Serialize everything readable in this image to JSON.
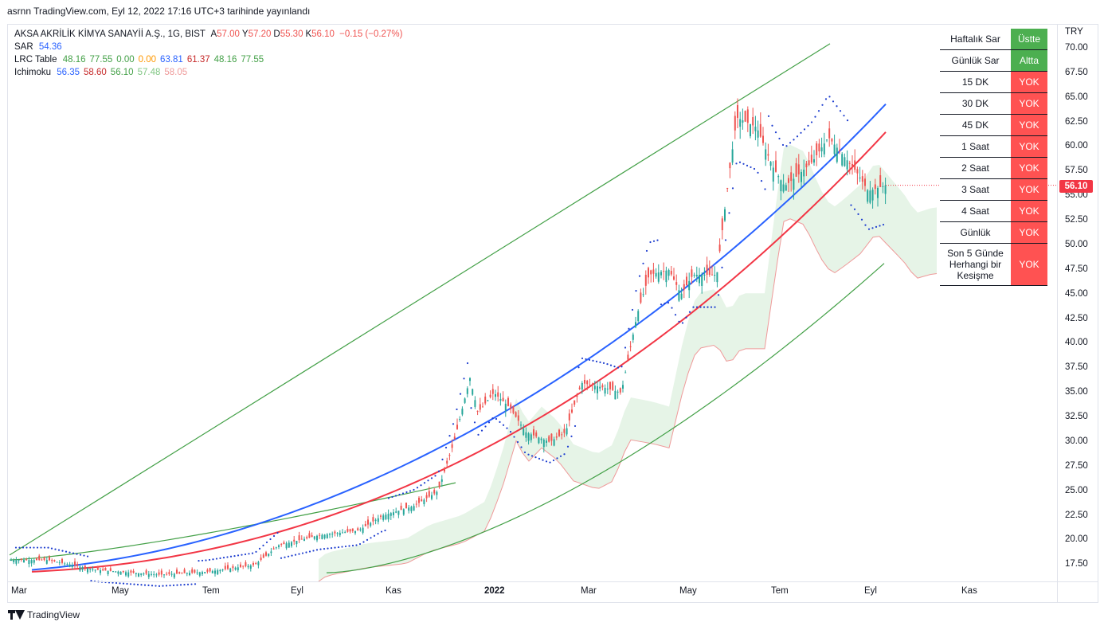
{
  "published": "asrnn TradingView.com, Eyl 12, 2022 17:16 UTC+3 tarihinde yayınlandı",
  "legend": {
    "symbol": "AKSA AKRİLİK KİMYA SANAYİİ A.Ş., 1G, BIST",
    "ohlc": [
      {
        "k": "A",
        "v": "57.00"
      },
      {
        "k": "Y",
        "v": "57.20"
      },
      {
        "k": "D",
        "v": "55.30"
      },
      {
        "k": "K",
        "v": "56.10"
      }
    ],
    "change": "−0.15 (−0.27%)",
    "sar": {
      "label": "SAR",
      "value": "54.36"
    },
    "lrc": {
      "label": "LRC Table",
      "values": [
        "48.16",
        "77.55",
        "0.00",
        "0.00",
        "63.81",
        "61.37",
        "48.16",
        "77.55"
      ]
    },
    "ichimoku": {
      "label": "Ichimoku",
      "values": [
        "56.35",
        "58.60",
        "56.10",
        "57.48",
        "58.05"
      ]
    }
  },
  "colors": {
    "up": "#26a69a",
    "down": "#ef5350",
    "ema_blue": "#2962ff",
    "ema_red": "#f23645",
    "channel": "#43a047",
    "sar": "#1e3ecf",
    "cloud_green": "#c8e6c9",
    "cloud_red": "#ffcdd2",
    "lrc": [
      "#43a047",
      "#43a047",
      "#43a047",
      "#ff9800",
      "#2962ff",
      "#c62828",
      "#43a047",
      "#43a047"
    ],
    "ichi": [
      "#2962ff",
      "#c62828",
      "#43a047",
      "#81c784",
      "#ef9a9a"
    ]
  },
  "currency": "TRY",
  "last_price": "56.10",
  "y_ticks": [
    "70.00",
    "67.50",
    "65.00",
    "62.50",
    "60.00",
    "57.50",
    "55.00",
    "52.50",
    "50.00",
    "47.50",
    "45.00",
    "42.50",
    "40.00",
    "37.50",
    "35.00",
    "32.50",
    "30.00",
    "27.50",
    "25.00",
    "22.50",
    "20.00",
    "17.50"
  ],
  "x_ticks": [
    {
      "label": "Mar",
      "bold": false
    },
    {
      "label": "May",
      "bold": false
    },
    {
      "label": "Tem",
      "bold": false
    },
    {
      "label": "Eyl",
      "bold": false
    },
    {
      "label": "Kas",
      "bold": false
    },
    {
      "label": "2022",
      "bold": true
    },
    {
      "label": "Mar",
      "bold": false
    },
    {
      "label": "May",
      "bold": false
    },
    {
      "label": "Tem",
      "bold": false
    },
    {
      "label": "Eyl",
      "bold": false
    },
    {
      "label": "Kas",
      "bold": false
    }
  ],
  "table": [
    {
      "name": "Haftalık Sar",
      "value": "Üstte",
      "status": "green"
    },
    {
      "name": "Günlük Sar",
      "value": "Altta",
      "status": "green"
    },
    {
      "name": "15 DK",
      "value": "YOK",
      "status": "red"
    },
    {
      "name": "30 DK",
      "value": "YOK",
      "status": "red"
    },
    {
      "name": "45 DK",
      "value": "YOK",
      "status": "red"
    },
    {
      "name": "1 Saat",
      "value": "YOK",
      "status": "red"
    },
    {
      "name": "2 Saat",
      "value": "YOK",
      "status": "red"
    },
    {
      "name": "3 Saat",
      "value": "YOK",
      "status": "red"
    },
    {
      "name": "4 Saat",
      "value": "YOK",
      "status": "red"
    },
    {
      "name": "Günlük",
      "value": "YOK",
      "status": "red"
    },
    {
      "name": "Son 5 Günde Herhangi bir Kesişme",
      "value": "YOK",
      "status": "red"
    }
  ],
  "footer": "TradingView"
}
